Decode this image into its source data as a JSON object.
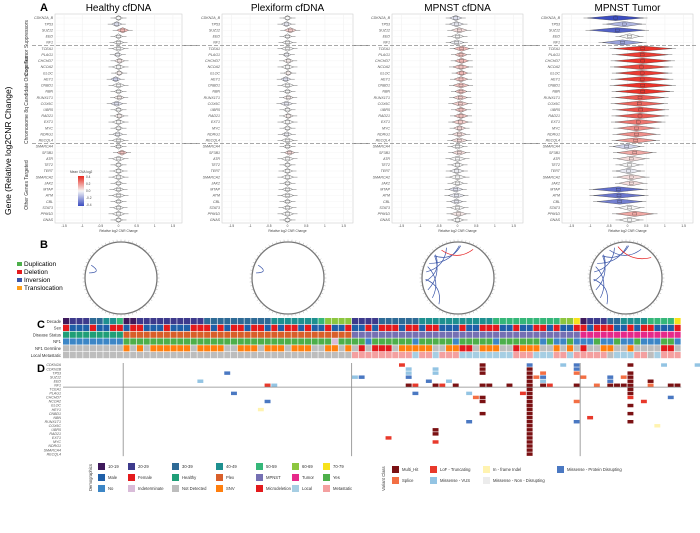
{
  "panel_labels": {
    "A": "A",
    "B": "B",
    "C": "C",
    "D": "D"
  },
  "yaxis_title": "Gene (Relative log2CNR Change)",
  "group_labels": [
    "Core Tumor Suppressors",
    "Chromosome 8q Candidate Oncogenes",
    "Other Genes Targeted"
  ],
  "colorbar": {
    "title": "Mean CNA log2",
    "ticks": [
      "0.4",
      "0.2",
      "0.0",
      "-0.2",
      "-0.4"
    ],
    "low": "#3b4cc0",
    "mid": "#f5f5f5",
    "high": "#e8281e"
  },
  "chart_data": [
    {
      "type": "violin",
      "xlabel": "Relative log2 CNR Change",
      "genes": [
        "CDKN2A_B",
        "TP53",
        "SUZ12",
        "EED",
        "NF1",
        "TCEA1",
        "PLAG1",
        "CHCHD7",
        "NCOA2",
        "ELOC",
        "HEY1",
        "CNBD1",
        "NBN",
        "RUNX1T1",
        "COX6C",
        "UBR5",
        "RAD21",
        "EXT1",
        "MYC",
        "NDRG1",
        "RECQL4",
        "SMARCA4",
        "SF3B1",
        "ATR",
        "TET2",
        "TERT",
        "SMARCA2",
        "JAK2",
        "MTAP",
        "ATM",
        "CBL",
        "STAT3",
        "PPM1D",
        "GNAS"
      ],
      "group_breaks_after": [
        "NF1",
        "RECQL4"
      ],
      "xlim": [
        -1.5,
        1.5
      ],
      "xticks": [
        "-1.5",
        "-1",
        "-0.5",
        "0",
        "0.5",
        "1",
        "1.5"
      ],
      "panels": [
        {
          "title": "Healthy cfDNA",
          "mean": [
            0,
            -0.05,
            0.12,
            0,
            0,
            0,
            -0.02,
            0.03,
            0,
            0.02,
            -0.08,
            0,
            0,
            0.02,
            -0.05,
            0,
            0.02,
            0,
            0,
            -0.02,
            0,
            0,
            0.1,
            0,
            0,
            0,
            0,
            0,
            0,
            0,
            0,
            0,
            0,
            0
          ]
        },
        {
          "title": "Plexiform cfDNA",
          "mean": [
            0,
            -0.03,
            0.08,
            0,
            0,
            0,
            -0.02,
            0.02,
            0,
            0.02,
            -0.05,
            0,
            0,
            0.02,
            -0.03,
            0,
            0.02,
            0,
            0,
            -0.02,
            0,
            0,
            0.06,
            0,
            0,
            0,
            0,
            0,
            0,
            0,
            0,
            0,
            0,
            0
          ]
        },
        {
          "title": "MPNST cfDNA",
          "mean": [
            -0.05,
            -0.03,
            0.05,
            0,
            -0.02,
            0.12,
            0.1,
            0.12,
            0.1,
            0.12,
            0.1,
            0.1,
            0.1,
            0.08,
            0.08,
            0.1,
            0.1,
            0.08,
            0.06,
            0.05,
            0.05,
            0,
            0.05,
            0,
            0,
            -0.02,
            0,
            0,
            -0.05,
            -0.03,
            -0.03,
            0,
            0.03,
            0
          ]
        },
        {
          "title": "MPNST Tumor",
          "mean": [
            -0.4,
            -0.15,
            -0.35,
            0,
            -0.2,
            0.38,
            0.36,
            0.38,
            0.34,
            0.36,
            0.36,
            0.38,
            0.38,
            0.3,
            0.28,
            0.32,
            0.3,
            0.25,
            0.2,
            0.2,
            0.18,
            -0.08,
            0.15,
            0.05,
            0,
            -0.03,
            0.05,
            0.05,
            -0.32,
            -0.3,
            -0.28,
            0,
            0.15,
            0
          ]
        }
      ]
    },
    {
      "type": "circos",
      "legend": [
        {
          "label": "Duplication",
          "color": "#4daf4a"
        },
        {
          "label": "Deletion",
          "color": "#e41a1c"
        },
        {
          "label": "Inversion",
          "color": "#3a55a8"
        },
        {
          "label": "Translocation",
          "color": "#ff9f1a"
        }
      ],
      "panels": [
        {
          "title": "Healthy cfDNA",
          "Duplication": 0,
          "Deletion": 0,
          "Inversion": 1,
          "Translocation": 0
        },
        {
          "title": "Plexiform cfDNA",
          "Duplication": 0,
          "Deletion": 0,
          "Inversion": 1,
          "Translocation": 0
        },
        {
          "title": "MPNST cfDNA",
          "Duplication": 0,
          "Deletion": 1,
          "Inversion": 7,
          "Translocation": 0
        },
        {
          "title": "MPNST Tumor",
          "Duplication": 0,
          "Deletion": 1,
          "Inversion": 8,
          "Translocation": 0
        }
      ]
    },
    {
      "type": "heatmap",
      "rows": [
        {
          "label": "Decade",
          "key": "decade",
          "values": "1222334451122222222223333333333444444456666222233333344444444444555555555566712223344445555 7"
        },
        {
          "label": "Sex",
          "key": "sex",
          "values": "FMMMFMMFFMFFMMMFMMMFFFMFMFFMFFMFMFFMFMMFMMFMMFMFFFMFFMFFMMMFMMFFFMMFMMFFMFMMFFMFFFMMFMFFMMMF"
        },
        {
          "label": "Disease Status",
          "key": "disease",
          "values": "HHHHHHHHHPPPPPPPPPPPPPPPPPPPPPPPPPPPPPPPPPPMMMMMMMMMMMMMMMMMMMMMMMMMMMMMMMMMMTTTTTTTTTTTTTTT"
        },
        {
          "label": "NF1",
          "key": "nf1",
          "values": "NNNNNNNNNYYYYYYYYYYYYYYYYYYYYYYYYYYYYYYYIYYYYNYYYYYYNYYYYYNYYYYYNYYYYYYNYNNYNNNYNNYNNYNNNYYN"
        },
        {
          "label": "NF1 Germline",
          "key": "germline",
          "values": "DDDDDDDDDSDSDSSSSSSDSSSSDDSSSDSSSDSSSDDSSDSDmDmmmDSSSSSDDSSmmDSSSDDmSSSDDSDSDmDDSSDDSDDDDmmD"
        },
        {
          "label": "Local Metastatic",
          "key": "locmet",
          "values": "DDDDDDDDDDDDDDDDDDDDDDDDDDDDDDDDDDDDDDDDDDDTTTTTTTTTLTTLTTTLLLLLLLLTTTLLLTTLTTTTTDLLLTTDLTTT"
        }
      ],
      "colors": {
        "decade": {
          "1": "#3f1a5c",
          "2": "#3d3a8c",
          "3": "#2e6a96",
          "4": "#1e9090",
          "5": "#35b779",
          "6": "#8cc63f",
          "7": "#f7e21b"
        },
        "sex": {
          "M": "#1f5fa8",
          "F": "#e41a1c"
        },
        "disease": {
          "H": "#1f9e77",
          "P": "#d95f2a",
          "M": "#7570b3",
          "T": "#e7298a"
        },
        "nf1": {
          "Y": "#4daf4a",
          "N": "#3c86c6",
          "I": "#d9bcd9"
        },
        "germline": {
          "D": "#bdbdbd",
          "S": "#ff7f0e",
          "m": "#e31a1c"
        },
        "locmet": {
          "D": "#bdbdbd",
          "L": "#a6cee3",
          "T": "#f4a0a0"
        }
      }
    },
    {
      "type": "oncoprint",
      "genes": [
        "CDKN2A",
        "CDKN2B",
        "TP53",
        "SUZ12",
        "EED",
        "NF1",
        "TCEA1",
        "PLAG1",
        "CHCHD7",
        "NCOA2",
        "ELOC",
        "HEY1",
        "CNBD1",
        "NBN",
        "RUNX1T1",
        "COX6C",
        "UBR5",
        "RAD21",
        "EXT1",
        "MYC",
        "NDRG1",
        "SMARCA4",
        "RECQL4"
      ],
      "group_boundaries_after_sample": [
        9,
        43,
        77
      ],
      "classes": {
        "1": "#7b1113",
        "2": "#e8392b",
        "3": "#fff3b0",
        "4": "#4a78c2",
        "5": "#f36f44",
        "6": "#93c4e3",
        "7": "#ececec"
      },
      "mutations": [
        [
          3,
          44,
          4
        ],
        [
          2,
          24,
          4
        ],
        [
          4,
          20,
          6
        ],
        [
          5,
          30,
          2
        ],
        [
          5,
          31,
          6
        ],
        [
          7,
          25,
          4
        ],
        [
          9,
          30,
          4
        ],
        [
          11,
          29,
          3
        ],
        [
          5,
          52,
          2
        ],
        [
          4,
          54,
          4
        ],
        [
          7,
          52,
          4
        ],
        [
          1,
          55,
          6
        ],
        [
          2,
          55,
          6
        ],
        [
          5,
          56,
          2
        ],
        [
          5,
          58,
          1
        ],
        [
          0,
          74,
          6
        ],
        [
          2,
          71,
          5
        ],
        [
          3,
          71,
          4
        ],
        [
          4,
          71,
          6
        ],
        [
          5,
          71,
          1
        ],
        [
          0,
          50,
          2
        ],
        [
          1,
          51,
          6
        ],
        [
          2,
          51,
          6
        ],
        [
          3,
          51,
          4
        ],
        [
          5,
          51,
          1
        ],
        [
          5,
          55,
          1
        ],
        [
          4,
          57,
          6
        ],
        [
          5,
          63,
          1
        ],
        [
          5,
          66,
          1
        ],
        [
          5,
          69,
          1
        ],
        [
          0,
          69,
          4
        ],
        [
          1,
          69,
          1
        ],
        [
          2,
          69,
          1
        ],
        [
          3,
          69,
          1
        ],
        [
          4,
          69,
          1
        ],
        [
          5,
          69,
          1
        ],
        [
          6,
          69,
          1
        ],
        [
          7,
          69,
          1
        ],
        [
          8,
          69,
          1
        ],
        [
          9,
          69,
          1
        ],
        [
          10,
          69,
          1
        ],
        [
          11,
          69,
          1
        ],
        [
          12,
          69,
          1
        ],
        [
          13,
          69,
          1
        ],
        [
          14,
          69,
          1
        ],
        [
          15,
          69,
          1
        ],
        [
          16,
          69,
          1
        ],
        [
          17,
          69,
          1
        ],
        [
          18,
          69,
          1
        ],
        [
          19,
          69,
          1
        ],
        [
          20,
          69,
          1
        ],
        [
          0,
          62,
          1
        ],
        [
          1,
          62,
          1
        ],
        [
          2,
          62,
          1
        ],
        [
          5,
          62,
          1
        ],
        [
          8,
          62,
          1
        ],
        [
          9,
          62,
          1
        ],
        [
          12,
          62,
          1
        ],
        [
          7,
          68,
          2
        ],
        [
          3,
          70,
          5
        ],
        [
          5,
          72,
          2
        ],
        [
          0,
          76,
          4
        ],
        [
          1,
          76,
          4
        ],
        [
          2,
          76,
          5
        ],
        [
          5,
          76,
          1
        ],
        [
          9,
          76,
          5
        ],
        [
          14,
          76,
          4
        ],
        [
          3,
          77,
          5
        ],
        [
          5,
          79,
          5
        ],
        [
          5,
          81,
          1
        ],
        [
          5,
          82,
          1
        ],
        [
          5,
          83,
          1
        ],
        [
          0,
          84,
          1
        ],
        [
          2,
          84,
          1
        ],
        [
          3,
          84,
          1
        ],
        [
          4,
          84,
          1
        ],
        [
          5,
          84,
          1
        ],
        [
          6,
          84,
          1
        ],
        [
          7,
          84,
          1
        ],
        [
          8,
          84,
          2
        ],
        [
          10,
          84,
          1
        ],
        [
          12,
          84,
          1
        ],
        [
          14,
          84,
          1
        ],
        [
          3,
          81,
          4
        ],
        [
          4,
          81,
          4
        ],
        [
          4,
          87,
          1
        ],
        [
          5,
          87,
          5
        ],
        [
          3,
          83,
          5
        ],
        [
          5,
          90,
          1
        ],
        [
          5,
          91,
          1
        ],
        [
          8,
          90,
          4
        ],
        [
          0,
          89,
          6
        ],
        [
          0,
          94,
          6
        ],
        [
          9,
          86,
          2
        ],
        [
          7,
          60,
          6
        ],
        [
          8,
          61,
          5
        ],
        [
          3,
          43,
          6
        ],
        [
          16,
          55,
          1
        ],
        [
          17,
          55,
          1
        ],
        [
          19,
          55,
          2
        ],
        [
          14,
          60,
          4
        ],
        [
          18,
          48,
          2
        ],
        [
          10,
          69,
          1
        ],
        [
          21,
          69,
          1
        ],
        [
          22,
          69,
          1
        ],
        [
          13,
          78,
          2
        ],
        [
          15,
          88,
          3
        ]
      ]
    }
  ],
  "legend_demographics": {
    "title": "Demographics",
    "items": [
      {
        "label": "10-19",
        "color": "#3f1a5c"
      },
      {
        "label": "20-29",
        "color": "#3d3a8c"
      },
      {
        "label": "30-39",
        "color": "#2e6a96"
      },
      {
        "label": "40-49",
        "color": "#1e9090"
      },
      {
        "label": "50-59",
        "color": "#35b779"
      },
      {
        "label": "60-69",
        "color": "#8cc63f"
      },
      {
        "label": "70-79",
        "color": "#f7e21b"
      },
      {
        "label": "Male",
        "color": "#1f5fa8"
      },
      {
        "label": "Female",
        "color": "#e41a1c"
      },
      {
        "label": "Healthy",
        "color": "#1f9e77"
      },
      {
        "label": "Plex",
        "color": "#d95f2a"
      },
      {
        "label": "MPNST",
        "color": "#7570b3"
      },
      {
        "label": "Tumor",
        "color": "#e7298a"
      },
      {
        "label": "Yes",
        "color": "#4daf4a"
      },
      {
        "label": "No",
        "color": "#3c86c6"
      },
      {
        "label": "Indeterminate",
        "color": "#d9bcd9"
      },
      {
        "label": "Not Detected",
        "color": "#bdbdbd"
      },
      {
        "label": "SNV",
        "color": "#ff7f0e"
      },
      {
        "label": "Microdeletion",
        "color": "#e31a1c"
      },
      {
        "label": "Local",
        "color": "#a6cee3"
      },
      {
        "label": "Metastatic",
        "color": "#f4a0a0"
      }
    ]
  },
  "legend_variant": {
    "title": "Variant Class",
    "items": [
      {
        "label": "Multi_Hit",
        "color": "#7b1113"
      },
      {
        "label": "LoF - Truncating",
        "color": "#e8392b"
      },
      {
        "label": "In - frame Indel",
        "color": "#fff3b0"
      },
      {
        "label": "Missense - Protein Disrupting",
        "color": "#4a78c2"
      },
      {
        "label": "Splice",
        "color": "#f36f44"
      },
      {
        "label": "Missense - VUS",
        "color": "#93c4e3"
      },
      {
        "label": "Missense - Non - Disrupting",
        "color": "#ececec"
      }
    ]
  }
}
